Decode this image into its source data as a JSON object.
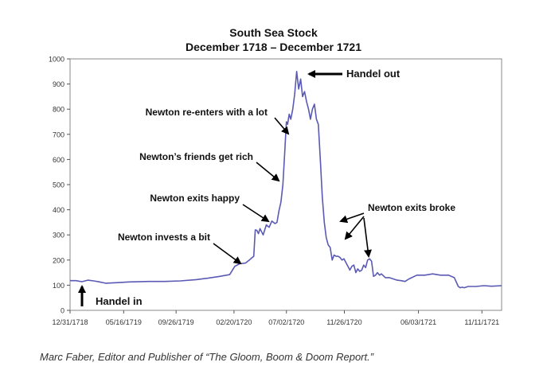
{
  "chart_data": {
    "type": "line",
    "title": "South Sea Stock",
    "subtitle": "December 1718 – December 1721",
    "xlabel": "",
    "ylabel": "",
    "ylim": [
      0,
      1000
    ],
    "yticks": [
      0,
      100,
      200,
      300,
      400,
      500,
      600,
      700,
      800,
      900,
      1000
    ],
    "xlim": [
      0,
      1095
    ],
    "xticks": [
      {
        "label": "12/31/1718",
        "x": 0
      },
      {
        "label": "05/16/1719",
        "x": 136
      },
      {
        "label": "09/26/1719",
        "x": 269
      },
      {
        "label": "02/20/1720",
        "x": 416
      },
      {
        "label": "07/02/1720",
        "x": 549
      },
      {
        "label": "11/26/1720",
        "x": 696
      },
      {
        "label": "06/03/1721",
        "x": 884
      },
      {
        "label": "11/11/1721",
        "x": 1045
      }
    ],
    "grid": false,
    "series": [
      {
        "color": "#5a5ab4",
        "x": [
          0,
          15,
          30,
          45,
          60,
          75,
          90,
          120,
          150,
          200,
          240,
          280,
          320,
          350,
          380,
          405,
          418,
          430,
          445,
          455,
          462,
          466,
          470,
          474,
          478,
          482,
          490,
          498,
          505,
          512,
          520,
          525,
          530,
          535,
          540,
          545,
          549,
          552,
          556,
          560,
          565,
          570,
          575,
          580,
          585,
          590,
          595,
          600,
          605,
          610,
          615,
          620,
          625,
          630,
          635,
          640,
          645,
          650,
          655,
          660,
          665,
          670,
          675,
          680,
          685,
          690,
          695,
          700,
          705,
          710,
          715,
          720,
          725,
          730,
          735,
          740,
          745,
          750,
          755,
          760,
          765,
          770,
          775,
          780,
          785,
          790,
          800,
          810,
          820,
          830,
          840,
          850,
          860,
          880,
          900,
          920,
          940,
          960,
          975,
          985,
          990,
          995,
          1000,
          1010,
          1030,
          1050,
          1070,
          1095
        ],
        "values": [
          118,
          118,
          114,
          120,
          117,
          113,
          108,
          110,
          113,
          115,
          115,
          117,
          122,
          128,
          135,
          142,
          175,
          185,
          188,
          200,
          210,
          215,
          320,
          318,
          305,
          325,
          300,
          340,
          330,
          355,
          345,
          350,
          395,
          430,
          500,
          640,
          750,
          740,
          780,
          760,
          800,
          860,
          950,
          880,
          920,
          850,
          870,
          830,
          800,
          760,
          800,
          820,
          760,
          740,
          600,
          450,
          350,
          290,
          260,
          250,
          200,
          220,
          215,
          215,
          210,
          200,
          205,
          190,
          175,
          160,
          175,
          180,
          150,
          165,
          155,
          160,
          180,
          170,
          200,
          205,
          195,
          135,
          140,
          150,
          140,
          145,
          130,
          130,
          125,
          120,
          118,
          115,
          125,
          140,
          140,
          145,
          140,
          140,
          130,
          95,
          90,
          92,
          90,
          95,
          95,
          98,
          96,
          98
        ]
      }
    ],
    "annotations": [
      {
        "text": "Handel out",
        "x": 549,
        "y": 950
      },
      {
        "text": "Newton re-enters with a lot",
        "x": 549,
        "y": 750
      },
      {
        "text": "Newton’s friends get rich",
        "x": 540,
        "y": 520
      },
      {
        "text": "Newton exits happy",
        "x": 505,
        "y": 345
      },
      {
        "text": "Newton invests a bit",
        "x": 418,
        "y": 175
      },
      {
        "text": "Newton exits broke",
        "x": 650,
        "y": 290
      },
      {
        "text": "Handel in",
        "x": 25,
        "y": 110
      }
    ]
  },
  "source_note": "Marc Faber, Editor and Publisher of “The Gloom, Boom & Doom Report.”"
}
